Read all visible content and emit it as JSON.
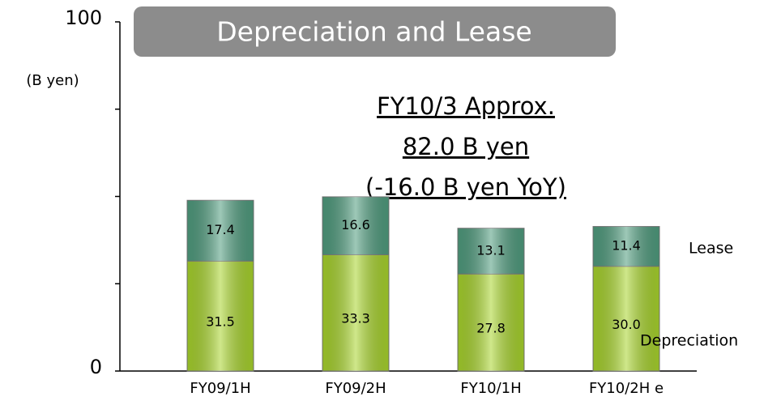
{
  "chart_data": {
    "type": "stacked_bar",
    "title": "Depreciation and Lease",
    "y_axis_label": "(B yen)",
    "annotation": [
      "FY10/3  Approx.",
      "82.0 B yen",
      "(-16.0 B yen YoY)"
    ],
    "categories": [
      "FY09/1H",
      "FY09/2H",
      "FY10/1H",
      "FY10/2H e"
    ],
    "series": [
      {
        "name": "Depreciation",
        "color": "#a8d42c",
        "values": [
          31.5,
          33.3,
          27.8,
          30.0
        ],
        "value_labels": [
          "31.5",
          "33.3",
          "27.8",
          "30.0"
        ]
      },
      {
        "name": "Lease",
        "color": "#4f9c7e",
        "values": [
          17.4,
          16.6,
          13.1,
          11.4
        ],
        "value_labels": [
          "17.4",
          "16.6",
          "13.1",
          "11.4"
        ]
      }
    ],
    "ylim": [
      0,
      100
    ],
    "yticks": [
      0,
      100
    ],
    "minor_yticks": [
      25,
      50,
      75
    ]
  }
}
